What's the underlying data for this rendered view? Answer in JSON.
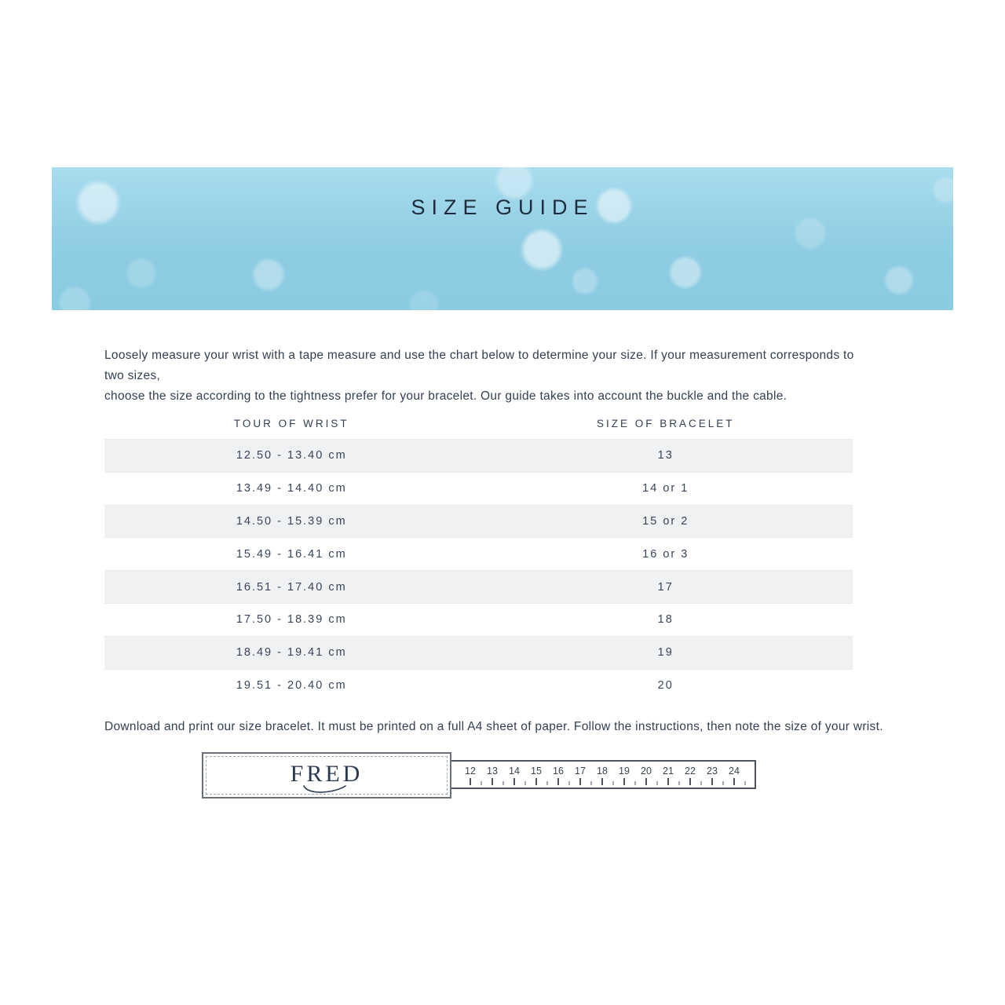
{
  "banner": {
    "title": "SIZE GUIDE"
  },
  "intro": {
    "line1": "Loosely measure your wrist with a tape measure and use the chart below to determine your size. If your measurement corresponds to two sizes,",
    "line2": "choose the size according to the tightness prefer for your bracelet. Our guide takes into account the buckle and the cable."
  },
  "table": {
    "headers": [
      "TOUR OF WRIST",
      "SIZE OF BRACELET"
    ],
    "rows": [
      [
        "12.50 - 13.40 cm",
        "13"
      ],
      [
        "13.49 - 14.40 cm",
        "14 or 1"
      ],
      [
        "14.50 - 15.39 cm",
        "15 or 2"
      ],
      [
        "15.49 - 16.41 cm",
        "16 or 3"
      ],
      [
        "16.51 - 17.40 cm",
        "17"
      ],
      [
        "17.50 - 18.39 cm",
        "18"
      ],
      [
        "18.49 - 19.41 cm",
        "19"
      ],
      [
        "19.51 - 20.40 cm",
        "20"
      ]
    ]
  },
  "download": {
    "text": "Download and print our size bracelet. It must be printed on a full A4 sheet of paper. Follow the instructions, then note the size of your wrist."
  },
  "ruler": {
    "brand": "FRED",
    "numbers": [
      "12",
      "13",
      "14",
      "15",
      "16",
      "17",
      "18",
      "19",
      "20",
      "21",
      "22",
      "23",
      "24"
    ]
  },
  "colors": {
    "banner_blue": "#93cee4",
    "text_navy": "#333f52",
    "title_navy": "#1f2c3d",
    "row_gray": "#f0f1f2",
    "brand_navy": "#2b3a52",
    "ruler_border": "#4e545b"
  }
}
